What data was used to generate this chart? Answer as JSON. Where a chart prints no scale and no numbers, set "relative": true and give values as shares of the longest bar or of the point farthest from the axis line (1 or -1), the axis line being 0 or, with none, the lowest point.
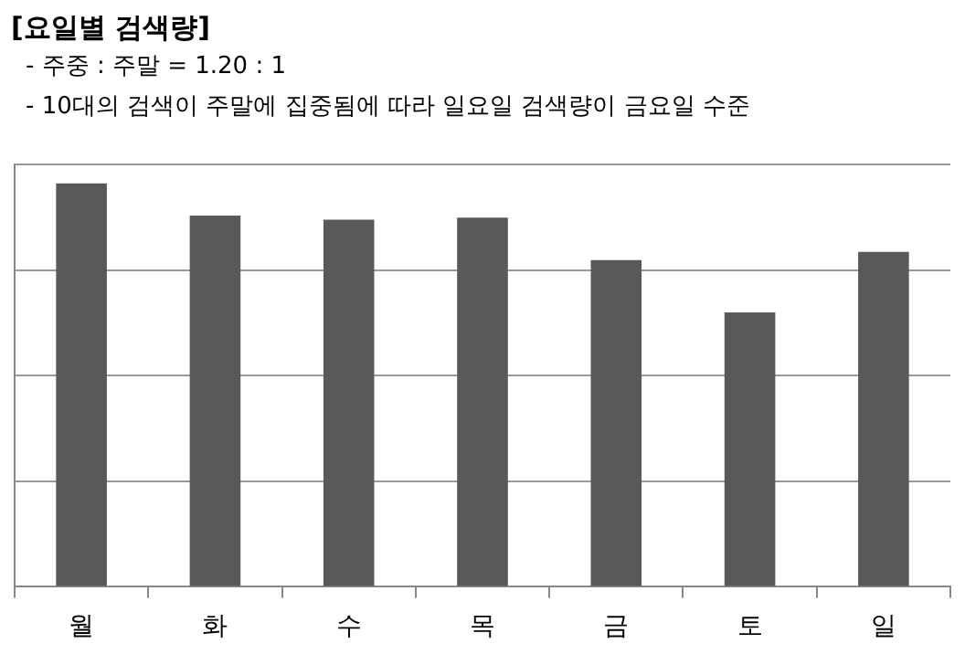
{
  "chart_data": {
    "type": "bar",
    "title": "[요일별 검색량]",
    "annotations": [
      "- 주중 : 주말 = 1.20 : 1",
      "- 10대의 검색이 주말에 집중됨에 따라 일요일 검색량이 금요일 수준"
    ],
    "categories": [
      "월",
      "화",
      "수",
      "목",
      "금",
      "토",
      "일"
    ],
    "values": [
      1,
      0.92,
      0.91,
      0.915,
      0.81,
      0.68,
      0.83
    ],
    "color": "#595959",
    "relative": true,
    "grid": "y",
    "legend": false
  }
}
